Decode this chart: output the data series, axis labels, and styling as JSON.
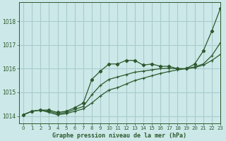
{
  "title": "Graphe pression niveau de la mer (hPa)",
  "bg_color": "#cce8e8",
  "grid_color": "#a8cccc",
  "line_color": "#2d5a2d",
  "xlim": [
    -0.5,
    23
  ],
  "ylim": [
    1013.7,
    1018.8
  ],
  "yticks": [
    1014,
    1015,
    1016,
    1017,
    1018
  ],
  "xticks": [
    0,
    1,
    2,
    3,
    4,
    5,
    6,
    7,
    8,
    9,
    10,
    11,
    12,
    13,
    14,
    15,
    16,
    17,
    18,
    19,
    20,
    21,
    22,
    23
  ],
  "series1_x": [
    0,
    1,
    2,
    3,
    4,
    5,
    6,
    7,
    8,
    9,
    10,
    11,
    12,
    13,
    14,
    15,
    16,
    17,
    18,
    19,
    20,
    21,
    22,
    23
  ],
  "series1_y": [
    1014.05,
    1014.2,
    1014.25,
    1014.25,
    1014.15,
    1014.2,
    1014.35,
    1014.55,
    1015.55,
    1015.9,
    1016.2,
    1016.2,
    1016.35,
    1016.35,
    1016.15,
    1016.2,
    1016.1,
    1016.1,
    1016.0,
    1016.0,
    1016.2,
    1016.75,
    1017.6,
    1018.55
  ],
  "series2_x": [
    0,
    1,
    2,
    3,
    4,
    5,
    6,
    7,
    8,
    9,
    10,
    11,
    12,
    13,
    14,
    15,
    16,
    17,
    18,
    19,
    20,
    21,
    22,
    23
  ],
  "series2_y": [
    1014.05,
    1014.2,
    1014.25,
    1014.15,
    1014.05,
    1014.1,
    1014.2,
    1014.3,
    1014.55,
    1014.85,
    1015.1,
    1015.2,
    1015.35,
    1015.5,
    1015.6,
    1015.7,
    1015.8,
    1015.88,
    1015.95,
    1016.0,
    1016.05,
    1016.15,
    1016.35,
    1016.6
  ],
  "series3_x": [
    0,
    1,
    2,
    3,
    4,
    5,
    6,
    7,
    8,
    9,
    10,
    11,
    12,
    13,
    14,
    15,
    16,
    17,
    18,
    19,
    20,
    21,
    22,
    23
  ],
  "series3_y": [
    1014.05,
    1014.2,
    1014.25,
    1014.2,
    1014.1,
    1014.15,
    1014.28,
    1014.4,
    1014.9,
    1015.3,
    1015.55,
    1015.65,
    1015.75,
    1015.85,
    1015.9,
    1015.95,
    1016.0,
    1016.02,
    1016.0,
    1016.0,
    1016.08,
    1016.2,
    1016.55,
    1017.1
  ]
}
